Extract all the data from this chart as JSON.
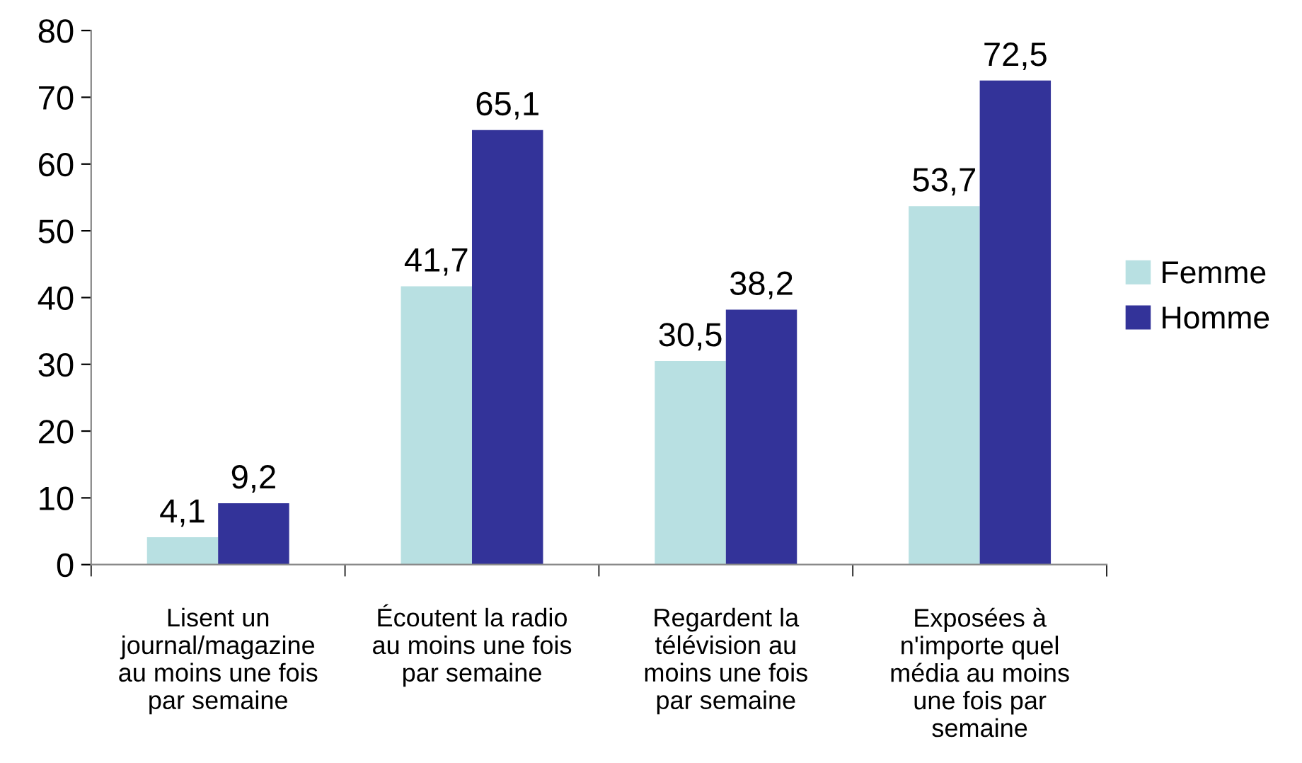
{
  "chart_data": {
    "type": "bar",
    "categories": [
      "Lisent un\njournal/magazine\nau moins une fois\npar semaine",
      "Écoutent la radio\nau moins une fois\npar semaine",
      "Regardent la\ntélévision au\nmoins une fois\npar semaine",
      "Exposées à\nn'importe quel\nmédia au moins\nune fois par\nsemaine"
    ],
    "series": [
      {
        "name": "Femme",
        "color": "#b8e0e2",
        "values": [
          4.1,
          41.7,
          30.5,
          53.7
        ],
        "value_labels": [
          "4,1",
          "41,7",
          "30,5",
          "53,7"
        ]
      },
      {
        "name": "Homme",
        "color": "#333399",
        "values": [
          9.2,
          65.1,
          38.2,
          72.5
        ],
        "value_labels": [
          "9,2",
          "65,1",
          "38,2",
          "72,5"
        ]
      }
    ],
    "ylim": [
      0,
      80
    ],
    "yticks": [
      0,
      10,
      20,
      30,
      40,
      50,
      60,
      70,
      80
    ],
    "grid": false,
    "legend": "right"
  }
}
